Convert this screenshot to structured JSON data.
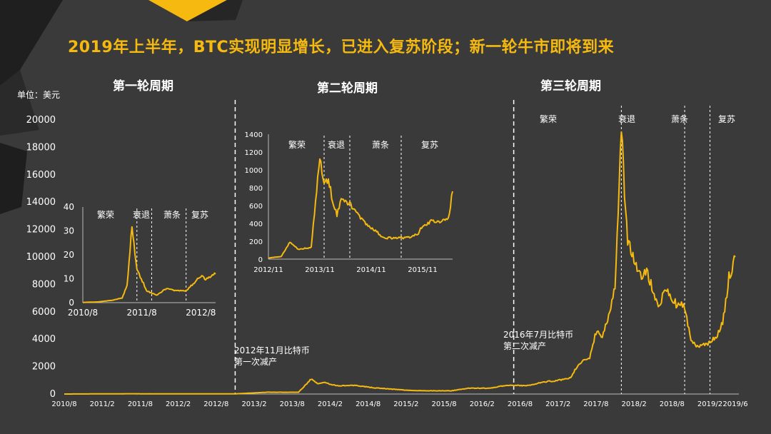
{
  "title": "2019年上半年，BTC实现明显增长，已进入复苏阶段；新一轮牛市即将到来",
  "cycles": [
    "第一轮周期",
    "第二轮周期",
    "第三轮周期"
  ],
  "unit_label": "单位：美元",
  "annotations": [
    {
      "line1": "2012年11月比特币",
      "line2": "第一次减产"
    },
    {
      "line1": "2016年7月比特币",
      "line2": "第二次减产"
    }
  ],
  "phases": [
    "繁荣",
    "衰退",
    "萧条",
    "复苏"
  ],
  "colors": {
    "background": "#3a3a3a",
    "series": "#f5b90f",
    "accent_shape": "#f5b90f",
    "dark_shape": "#1e1e1e"
  },
  "chart_data": [
    {
      "type": "line",
      "name": "main",
      "yticks": [
        0,
        2000,
        4000,
        6000,
        8000,
        10000,
        12000,
        14000,
        16000,
        18000,
        20000
      ],
      "ylim": [
        0,
        20000
      ],
      "xticks": [
        "2010/8",
        "2011/2",
        "2011/8",
        "2012/2",
        "2012/8",
        "2013/2",
        "2013/8",
        "2014/2",
        "2014/8",
        "2015/2",
        "2015/8",
        "2016/2",
        "2016/8",
        "2017/2",
        "2017/8",
        "2018/2",
        "2018/8",
        "2019/2",
        "2019/6"
      ],
      "x": [
        "2010-08",
        "2011-06",
        "2012-08",
        "2012-11",
        "2013-04",
        "2013-09",
        "2013-11",
        "2013-12",
        "2014-01",
        "2014-03",
        "2014-06",
        "2014-09",
        "2014-12",
        "2015-03",
        "2015-06",
        "2015-09",
        "2015-12",
        "2016-03",
        "2016-06",
        "2016-09",
        "2016-12",
        "2017-02",
        "2017-04",
        "2017-05",
        "2017-06",
        "2017-07",
        "2017-08",
        "2017-09",
        "2017-10",
        "2017-11",
        "2017-12",
        "2018-01",
        "2018-02",
        "2018-03",
        "2018-04",
        "2018-05",
        "2018-06",
        "2018-07",
        "2018-08",
        "2018-09",
        "2018-10",
        "2018-11",
        "2018-12",
        "2019-01",
        "2019-02",
        "2019-03",
        "2019-04",
        "2019-05",
        "2019-06"
      ],
      "values": [
        0,
        20,
        10,
        12,
        130,
        130,
        1100,
        750,
        850,
        600,
        620,
        450,
        350,
        250,
        240,
        230,
        430,
        420,
        650,
        610,
        900,
        1000,
        1200,
        2000,
        2500,
        2600,
        4500,
        4300,
        5800,
        8000,
        19000,
        11000,
        10000,
        8500,
        9200,
        7500,
        6500,
        7800,
        6800,
        6500,
        6400,
        4000,
        3500,
        3600,
        3800,
        4100,
        5200,
        8500,
        10000
      ],
      "dividers": [
        "2012-11",
        "2016-07"
      ],
      "phase_dividers": [
        "2017-12",
        "2018-10",
        "2019-02"
      ]
    },
    {
      "type": "line",
      "name": "inset1",
      "yticks": [
        0,
        10,
        20,
        30,
        40
      ],
      "ylim": [
        0,
        40
      ],
      "xticks": [
        "2010/8",
        "2011/8",
        "2012/8"
      ],
      "x": [
        "2010-08",
        "2010-11",
        "2011-02",
        "2011-04",
        "2011-05",
        "2011-06",
        "2011-07",
        "2011-09",
        "2011-11",
        "2012-01",
        "2012-03",
        "2012-05",
        "2012-06",
        "2012-08",
        "2012-09",
        "2012-11"
      ],
      "values": [
        0.1,
        0.3,
        1,
        2,
        7,
        32,
        14,
        5,
        3,
        6,
        5,
        5,
        7,
        11,
        10,
        12
      ],
      "phase_dividers": [
        "2011-07",
        "2011-10",
        "2012-05"
      ]
    },
    {
      "type": "line",
      "name": "inset2",
      "yticks": [
        0,
        200,
        400,
        600,
        800,
        1000,
        1200,
        1400
      ],
      "ylim": [
        0,
        1400
      ],
      "xticks": [
        "2012/11",
        "2013/11",
        "2014/11",
        "2015/11"
      ],
      "x": [
        "2012-11",
        "2013-02",
        "2013-04",
        "2013-06",
        "2013-09",
        "2013-11",
        "2013-12",
        "2014-01",
        "2014-02",
        "2014-03",
        "2014-04",
        "2014-06",
        "2014-08",
        "2014-10",
        "2014-12",
        "2015-02",
        "2015-04",
        "2015-06",
        "2015-08",
        "2015-10",
        "2015-11",
        "2016-01",
        "2016-03",
        "2016-05",
        "2016-06"
      ],
      "values": [
        12,
        30,
        190,
        110,
        130,
        1150,
        850,
        900,
        650,
        500,
        650,
        620,
        500,
        380,
        320,
        230,
        240,
        240,
        240,
        290,
        380,
        420,
        410,
        450,
        760
      ],
      "phase_dividers": [
        "2013-12",
        "2014-06",
        "2015-06"
      ]
    }
  ]
}
